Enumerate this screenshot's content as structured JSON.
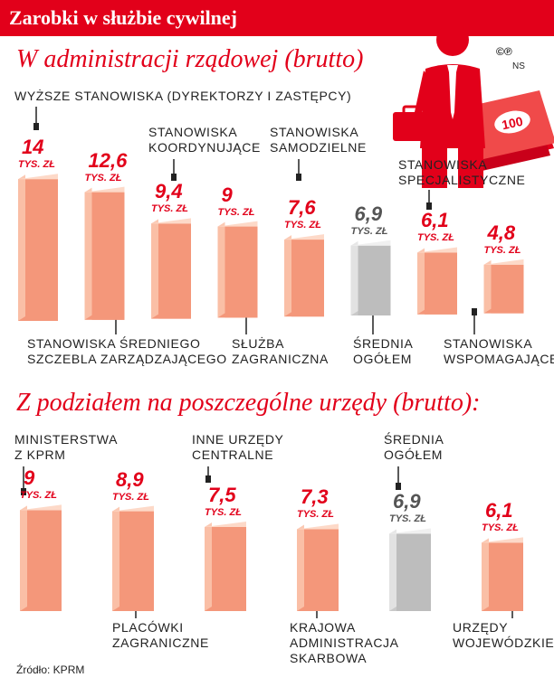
{
  "header": {
    "title": "Zarobki w służbie cywilnej"
  },
  "copyright": {
    "symbol": "©℗",
    "initials": "NS"
  },
  "source": "Źródło: KPRM",
  "colors": {
    "accent": "#e2001a",
    "bar_face": "#f4977a",
    "bar_side": "#fbc3ab",
    "bar_top": "#fdd9c8",
    "avg_face": "#c9c9c9",
    "avg_side": "#e4e4e4",
    "avg_top": "#f0f0f0"
  },
  "icons": [
    "businessman-icon",
    "briefcase-icon",
    "banknotes-icon"
  ],
  "chart_data": [
    {
      "type": "bar",
      "title": "W administracji rządowej (brutto)",
      "unit": "TYS. ZŁ",
      "categories": [
        "Wyższe stanowiska (dyrektorzy i zastępcy)",
        "Stanowiska średniego szczebla zarządzającego",
        "Stanowiska koordynujące",
        "Służba zagraniczna",
        "Stanowiska samodzielne",
        "Średnia ogółem",
        "Stanowiska specjalistyczne",
        "Stanowiska wspomagające"
      ],
      "values": [
        14,
        12.6,
        9.4,
        9,
        7.6,
        6.9,
        6.1,
        4.8
      ],
      "value_labels": [
        "14",
        "12,6",
        "9,4",
        "9",
        "7,6",
        "6,9",
        "6,1",
        "4,8"
      ],
      "highlight": [
        false,
        false,
        false,
        false,
        false,
        true,
        false,
        false
      ]
    },
    {
      "type": "bar",
      "title": "Z podziałem na poszczególne urzędy (brutto):",
      "unit": "TYS. ZŁ",
      "categories": [
        "Ministerstwa z KPRM",
        "Placówki zagraniczne",
        "Inne urzędy centralne",
        "Krajowa Administracja Skarbowa",
        "Średnia ogółem",
        "Urzędy wojewódzkie"
      ],
      "values": [
        9,
        8.9,
        7.5,
        7.3,
        6.9,
        6.1
      ],
      "value_labels": [
        "9",
        "8,9",
        "7,5",
        "7,3",
        "6,9",
        "6,1"
      ],
      "highlight": [
        false,
        false,
        false,
        false,
        true,
        false
      ]
    }
  ],
  "labels1": {
    "c0": "WYŻSZE STANOWISKA (DYREKTORZY I ZASTĘPCY)",
    "c1a": "STANOWISKA ŚREDNIEGO",
    "c1b": "SZCZEBLA ZARZĄDZAJĄCEGO",
    "c2a": "STANOWISKA",
    "c2b": "KOORDYNUJĄCE",
    "c3a": "SŁUŻBA",
    "c3b": "ZAGRANICZNA",
    "c4a": "STANOWISKA",
    "c4b": "SAMODZIELNE",
    "c5a": "ŚREDNIA",
    "c5b": "OGÓŁEM",
    "c6a": "STANOWISKA",
    "c6b": "SPECJALISTYCZNE",
    "c7a": "STANOWISKA",
    "c7b": "WSPOMAGAJĄCE"
  },
  "labels2": {
    "c0a": "MINISTERSTWA",
    "c0b": "Z KPRM",
    "c1a": "PLACÓWKI",
    "c1b": "ZAGRANICZNE",
    "c2a": "INNE URZĘDY",
    "c2b": "CENTRALNE",
    "c3a": "KRAJOWA",
    "c3b": "ADMINISTRACJA",
    "c3c": "SKARBOWA",
    "c4a": "ŚREDNIA",
    "c4b": "OGÓŁEM",
    "c5a": "URZĘDY",
    "c5b": "WOJEWÓDZKIE"
  }
}
